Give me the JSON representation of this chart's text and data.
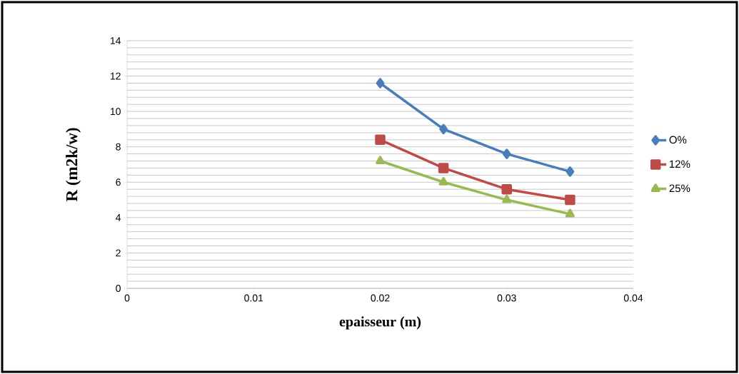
{
  "chart_data": {
    "type": "line",
    "xlabel": "epaisseur  (m)",
    "ylabel": "R (m2k/w)",
    "x": [
      0.02,
      0.025,
      0.03,
      0.035
    ],
    "series": [
      {
        "name": "O%",
        "color": "#4a7ebb",
        "marker": "diamond",
        "values": [
          11.6,
          9.0,
          7.6,
          6.6
        ]
      },
      {
        "name": "12%",
        "color": "#be4b48",
        "marker": "square",
        "values": [
          8.4,
          6.8,
          5.6,
          5.0
        ]
      },
      {
        "name": "25%",
        "color": "#98b954",
        "marker": "triangle",
        "values": [
          7.2,
          6.0,
          5.0,
          4.2
        ]
      }
    ],
    "xlim": [
      0,
      0.04
    ],
    "xticks": [
      0,
      0.01,
      0.02,
      0.03,
      0.04
    ],
    "ylim": [
      0,
      14
    ],
    "yticks": [
      0,
      2,
      4,
      6,
      8,
      10,
      12,
      14
    ],
    "grid": "y",
    "legend": "right",
    "line_style": "solid"
  }
}
